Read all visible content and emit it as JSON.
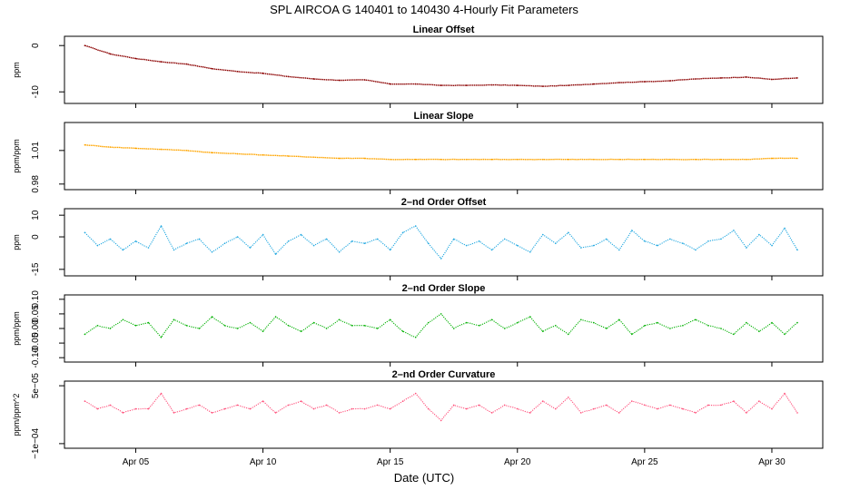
{
  "title": "SPL   AIRCOA G   140401 to 140430   4-Hourly Fit Parameters",
  "xlabel": "Date (UTC)",
  "x_ticks": [
    "Apr 05",
    "Apr 10",
    "Apr 15",
    "Apr 20",
    "Apr 25",
    "Apr 30"
  ],
  "chart_data": [
    {
      "type": "line",
      "title": "Linear Offset",
      "ylabel": "ppm",
      "color": "#8b0000",
      "xlim": [
        2.2,
        32.0
      ],
      "ylim": [
        -12.5,
        2.0
      ],
      "yticks": [
        "0",
        "-10"
      ],
      "ytick_values": [
        0,
        -10
      ],
      "x": [
        3.0,
        4.0,
        5.0,
        6.0,
        7.0,
        8.0,
        9.0,
        10.0,
        11.0,
        12.0,
        13.0,
        14.0,
        15.0,
        16.0,
        17.0,
        18.0,
        19.0,
        20.0,
        21.0,
        22.0,
        23.0,
        24.0,
        25.0,
        26.0,
        27.0,
        28.0,
        29.0,
        30.0,
        31.0
      ],
      "values": [
        0.0,
        -1.8,
        -2.8,
        -3.5,
        -4.0,
        -5.0,
        -5.6,
        -6.0,
        -6.7,
        -7.2,
        -7.5,
        -7.4,
        -8.3,
        -8.3,
        -8.6,
        -8.6,
        -8.5,
        -8.6,
        -8.8,
        -8.6,
        -8.3,
        -8.0,
        -7.8,
        -7.6,
        -7.2,
        -7.0,
        -6.8,
        -7.3,
        -7.0
      ]
    },
    {
      "type": "line",
      "title": "Linear Slope",
      "ylabel": "ppm/ppm",
      "color": "#ffa500",
      "xlim": [
        2.2,
        32.0
      ],
      "ylim": [
        0.975,
        1.035
      ],
      "yticks": [
        "1.01",
        "0.98"
      ],
      "ytick_values": [
        1.01,
        0.98
      ],
      "x": [
        3.0,
        4.0,
        5.0,
        6.0,
        7.0,
        8.0,
        9.0,
        10.0,
        11.0,
        12.0,
        13.0,
        14.0,
        15.0,
        16.0,
        17.0,
        18.0,
        19.0,
        20.0,
        21.0,
        22.0,
        23.0,
        24.0,
        25.0,
        26.0,
        27.0,
        28.0,
        29.0,
        30.0,
        31.0
      ],
      "values": [
        1.015,
        1.013,
        1.012,
        1.011,
        1.01,
        1.008,
        1.007,
        1.006,
        1.005,
        1.004,
        1.003,
        1.003,
        1.002,
        1.002,
        1.002,
        1.002,
        1.002,
        1.002,
        1.002,
        1.002,
        1.002,
        1.002,
        1.002,
        1.002,
        1.002,
        1.002,
        1.002,
        1.003,
        1.003
      ]
    },
    {
      "type": "line",
      "title": "2–nd Order Offset",
      "ylabel": "ppm",
      "color": "#1fa7e0",
      "xlim": [
        2.2,
        32.0
      ],
      "ylim": [
        -18,
        13
      ],
      "yticks": [
        "10",
        "0",
        "-15"
      ],
      "ytick_values": [
        10,
        0,
        -15
      ],
      "x": [
        3.0,
        3.5,
        4.0,
        4.5,
        5.0,
        5.5,
        6.0,
        6.5,
        7.0,
        7.5,
        8.0,
        8.5,
        9.0,
        9.5,
        10.0,
        10.5,
        11.0,
        11.5,
        12.0,
        12.5,
        13.0,
        13.5,
        14.0,
        14.5,
        15.0,
        15.5,
        16.0,
        16.5,
        17.0,
        17.5,
        18.0,
        18.5,
        19.0,
        19.5,
        20.0,
        20.5,
        21.0,
        21.5,
        22.0,
        22.5,
        23.0,
        23.5,
        24.0,
        24.5,
        25.0,
        25.5,
        26.0,
        26.5,
        27.0,
        27.5,
        28.0,
        28.5,
        29.0,
        29.5,
        30.0,
        30.5,
        31.0
      ],
      "values": [
        2,
        -4,
        -1,
        -6,
        -2,
        -5,
        5,
        -6,
        -3,
        -1,
        -7,
        -3,
        0,
        -5,
        1,
        -8,
        -2,
        1,
        -4,
        -1,
        -7,
        -2,
        -3,
        -1,
        -6,
        2,
        5,
        -3,
        -10,
        -1,
        -4,
        -2,
        -6,
        -1,
        -4,
        -7,
        1,
        -3,
        2,
        -5,
        -4,
        -1,
        -6,
        3,
        -2,
        -4,
        -1,
        -3,
        -6,
        -2,
        -1,
        3,
        -5,
        1,
        -4,
        4,
        -6
      ]
    },
    {
      "type": "line",
      "title": "2–nd Order Slope",
      "ylabel": "ppm/ppm",
      "color": "#00b000",
      "xlim": [
        2.2,
        32.0
      ],
      "ylim": [
        -0.115,
        0.115
      ],
      "yticks": [
        "0.10",
        "0.05",
        "0.00",
        "-0.05",
        "-0.10"
      ],
      "ytick_values": [
        0.1,
        0.05,
        0.0,
        -0.05,
        -0.1
      ],
      "x": [
        3.0,
        3.5,
        4.0,
        4.5,
        5.0,
        5.5,
        6.0,
        6.5,
        7.0,
        7.5,
        8.0,
        8.5,
        9.0,
        9.5,
        10.0,
        10.5,
        11.0,
        11.5,
        12.0,
        12.5,
        13.0,
        13.5,
        14.0,
        14.5,
        15.0,
        15.5,
        16.0,
        16.5,
        17.0,
        17.5,
        18.0,
        18.5,
        19.0,
        19.5,
        20.0,
        20.5,
        21.0,
        21.5,
        22.0,
        22.5,
        23.0,
        23.5,
        24.0,
        24.5,
        25.0,
        25.5,
        26.0,
        26.5,
        27.0,
        27.5,
        28.0,
        28.5,
        29.0,
        29.5,
        30.0,
        30.5,
        31.0
      ],
      "values": [
        -0.02,
        0.01,
        0.0,
        0.03,
        0.01,
        0.02,
        -0.03,
        0.03,
        0.01,
        0.0,
        0.04,
        0.01,
        0.0,
        0.02,
        -0.01,
        0.04,
        0.01,
        -0.01,
        0.02,
        0.0,
        0.03,
        0.01,
        0.01,
        0.0,
        0.03,
        -0.01,
        -0.03,
        0.02,
        0.05,
        0.0,
        0.02,
        0.01,
        0.03,
        0.0,
        0.02,
        0.04,
        -0.01,
        0.01,
        -0.02,
        0.03,
        0.02,
        0.0,
        0.03,
        -0.02,
        0.01,
        0.02,
        0.0,
        0.01,
        0.03,
        0.01,
        0.0,
        -0.02,
        0.02,
        -0.01,
        0.02,
        -0.02,
        0.02
      ]
    },
    {
      "type": "line",
      "title": "2–nd Order Curvature",
      "ylabel": "ppm/ppm^2",
      "color": "#ff4f7a",
      "xlim": [
        2.2,
        32.0
      ],
      "ylim": [
        -0.000112,
        6.2e-05
      ],
      "yticks": [
        "5e−05",
        "−1e−04"
      ],
      "ytick_values": [
        5e-05,
        -0.0001
      ],
      "x": [
        3.0,
        3.5,
        4.0,
        4.5,
        5.0,
        5.5,
        6.0,
        6.5,
        7.0,
        7.5,
        8.0,
        8.5,
        9.0,
        9.5,
        10.0,
        10.5,
        11.0,
        11.5,
        12.0,
        12.5,
        13.0,
        13.5,
        14.0,
        14.5,
        15.0,
        15.5,
        16.0,
        16.5,
        17.0,
        17.5,
        18.0,
        18.5,
        19.0,
        19.5,
        20.0,
        20.5,
        21.0,
        21.5,
        22.0,
        22.5,
        23.0,
        23.5,
        24.0,
        24.5,
        25.0,
        25.5,
        26.0,
        26.5,
        27.0,
        27.5,
        28.0,
        28.5,
        29.0,
        29.5,
        30.0,
        30.5,
        31.0
      ],
      "values": [
        1e-05,
        -1e-05,
        0.0,
        -2e-05,
        -1e-05,
        -1e-05,
        3e-05,
        -2e-05,
        -1e-05,
        0.0,
        -2e-05,
        -1e-05,
        0.0,
        -1e-05,
        1e-05,
        -2e-05,
        0.0,
        1e-05,
        -1e-05,
        0.0,
        -2e-05,
        -1e-05,
        -1e-05,
        0.0,
        -1e-05,
        1e-05,
        3e-05,
        -1e-05,
        -4e-05,
        0.0,
        -1e-05,
        0.0,
        -2e-05,
        0.0,
        -1e-05,
        -2e-05,
        1e-05,
        -1e-05,
        2e-05,
        -2e-05,
        -1e-05,
        0.0,
        -2e-05,
        1e-05,
        0.0,
        -1e-05,
        0.0,
        -1e-05,
        -2e-05,
        0.0,
        0.0,
        1e-05,
        -2e-05,
        1e-05,
        -1e-05,
        3e-05,
        -2e-05
      ]
    }
  ]
}
